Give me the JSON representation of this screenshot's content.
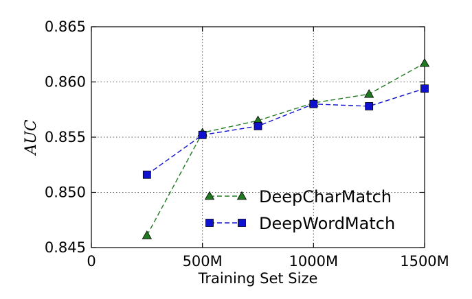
{
  "chart_data": {
    "type": "line",
    "xlabel": "Training Set Size",
    "ylabel": "AUC",
    "xlim": [
      0,
      1500
    ],
    "ylim": [
      0.845,
      0.865
    ],
    "xticks": [
      0,
      500,
      1000,
      1500
    ],
    "xtick_labels": [
      "0",
      "500M",
      "1000M",
      "1500M"
    ],
    "yticks": [
      0.845,
      0.85,
      0.855,
      0.86,
      0.865
    ],
    "ytick_labels": [
      "0.845",
      "0.850",
      "0.855",
      "0.860",
      "0.865"
    ],
    "grid": true,
    "legend_position": "lower-right",
    "series": [
      {
        "name": "DeepCharMatch",
        "color": "#1f7a1f",
        "marker": "triangle",
        "x": [
          250,
          500,
          750,
          1000,
          1250,
          1500
        ],
        "y": [
          0.8461,
          0.8554,
          0.8565,
          0.8581,
          0.8589,
          0.8617
        ]
      },
      {
        "name": "DeepWordMatch",
        "color": "#1010d0",
        "marker": "square",
        "x": [
          250,
          500,
          750,
          1000,
          1250,
          1500
        ],
        "y": [
          0.8516,
          0.8552,
          0.856,
          0.858,
          0.8578,
          0.8594
        ]
      }
    ]
  }
}
